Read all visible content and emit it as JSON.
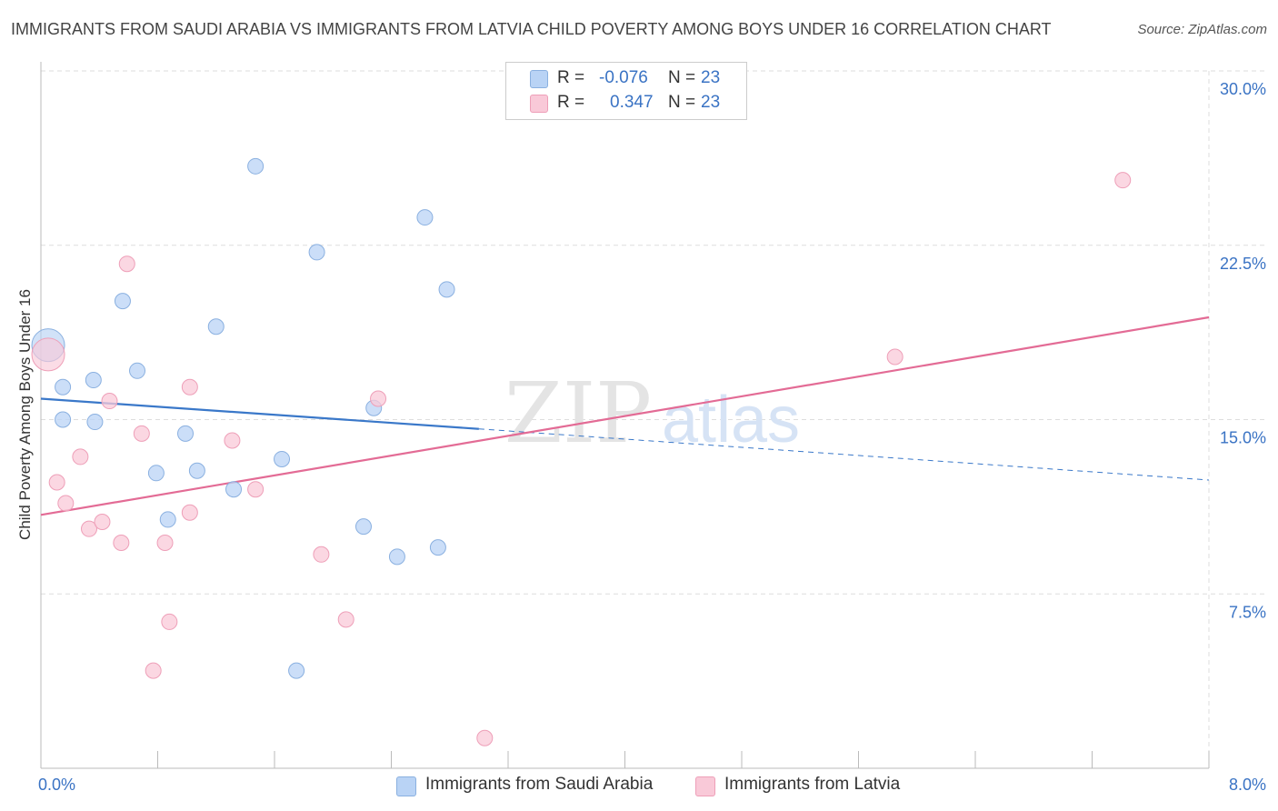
{
  "header": {
    "title": "IMMIGRANTS FROM SAUDI ARABIA VS IMMIGRANTS FROM LATVIA CHILD POVERTY AMONG BOYS UNDER 16 CORRELATION CHART",
    "source": "Source: ZipAtlas.com"
  },
  "watermark": {
    "zip": "ZIP",
    "atlas": "atlas"
  },
  "legend": {
    "rows": [
      {
        "r_label": "R =",
        "r_value": "-0.076",
        "n_label": "N =",
        "n_value": "23"
      },
      {
        "r_label": "R =",
        "r_value": "0.347",
        "n_label": "N =",
        "n_value": "23"
      }
    ]
  },
  "bottom_legend": {
    "saudi": "Immigrants from Saudi Arabia",
    "latvia": "Immigrants from Latvia"
  },
  "colors": {
    "saudi_fill": "#b9d3f5",
    "saudi_stroke": "#8ab0e0",
    "saudi_line": "#3a78c9",
    "latvia_fill": "#f9c9d8",
    "latvia_stroke": "#ee9fb8",
    "latvia_line": "#e36b95",
    "tick_label": "#3a73c4",
    "grid": "#dddddd"
  },
  "chart_data": {
    "type": "scatter",
    "title": "IMMIGRANTS FROM SAUDI ARABIA VS IMMIGRANTS FROM LATVIA CHILD POVERTY AMONG BOYS UNDER 16 CORRELATION CHART",
    "xlabel": "",
    "ylabel": "Child Poverty Among Boys Under 16",
    "xlim": [
      0,
      8
    ],
    "ylim": [
      0,
      30
    ],
    "x_tick_labels": [
      "0.0%",
      "8.0%"
    ],
    "y_ticks": [
      7.5,
      15,
      22.5,
      30
    ],
    "y_tick_labels": [
      "7.5%",
      "15.0%",
      "22.5%",
      "30.0%"
    ],
    "grid": true,
    "legend_position": "top-center",
    "series": [
      {
        "name": "Immigrants from Saudi Arabia",
        "r": -0.076,
        "n": 23,
        "points": [
          [
            0.05,
            18.2
          ],
          [
            0.15,
            16.4
          ],
          [
            0.15,
            15.0
          ],
          [
            0.36,
            16.7
          ],
          [
            0.37,
            14.9
          ],
          [
            0.56,
            20.1
          ],
          [
            0.66,
            17.1
          ],
          [
            0.79,
            12.7
          ],
          [
            0.87,
            10.7
          ],
          [
            0.99,
            14.4
          ],
          [
            1.07,
            12.8
          ],
          [
            1.2,
            19.0
          ],
          [
            1.32,
            12.0
          ],
          [
            1.47,
            25.9
          ],
          [
            1.65,
            13.3
          ],
          [
            1.75,
            4.2
          ],
          [
            1.89,
            22.2
          ],
          [
            2.21,
            10.4
          ],
          [
            2.28,
            15.5
          ],
          [
            2.44,
            9.1
          ],
          [
            2.63,
            23.7
          ],
          [
            2.72,
            9.5
          ],
          [
            2.78,
            20.6
          ]
        ],
        "trend": {
          "x0": 0.0,
          "y0": 15.9,
          "x1": 3.0,
          "y1": 14.6,
          "x_dash_end": 8.0,
          "y_dash_end": 12.4
        }
      },
      {
        "name": "Immigrants from Latvia",
        "r": 0.347,
        "n": 23,
        "points": [
          [
            0.05,
            17.8
          ],
          [
            0.11,
            12.3
          ],
          [
            0.17,
            11.4
          ],
          [
            0.27,
            13.4
          ],
          [
            0.33,
            10.3
          ],
          [
            0.42,
            10.6
          ],
          [
            0.47,
            15.8
          ],
          [
            0.55,
            9.7
          ],
          [
            0.59,
            21.7
          ],
          [
            0.69,
            14.4
          ],
          [
            0.77,
            4.2
          ],
          [
            0.85,
            9.7
          ],
          [
            0.88,
            6.3
          ],
          [
            1.02,
            16.4
          ],
          [
            1.02,
            11.0
          ],
          [
            1.31,
            14.1
          ],
          [
            1.47,
            12.0
          ],
          [
            1.92,
            9.2
          ],
          [
            2.09,
            6.4
          ],
          [
            2.31,
            15.9
          ],
          [
            3.04,
            1.3
          ],
          [
            5.85,
            17.7
          ],
          [
            7.41,
            25.3
          ]
        ],
        "trend": {
          "x0": 0.0,
          "y0": 10.9,
          "x1": 8.0,
          "y1": 19.4
        }
      }
    ]
  }
}
